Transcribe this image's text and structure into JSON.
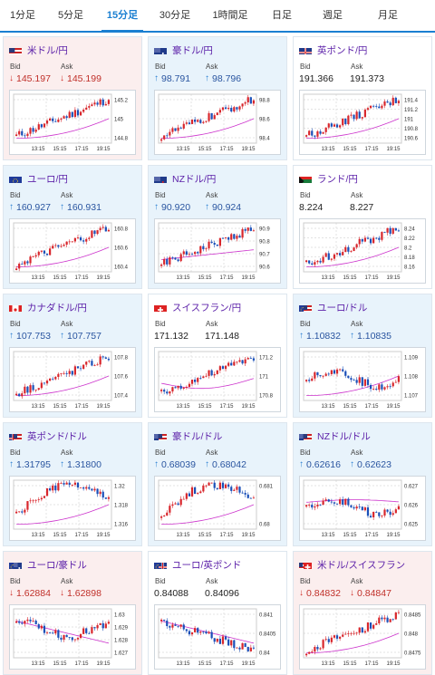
{
  "tabs": [
    {
      "label": "1分足",
      "active": false
    },
    {
      "label": "5分足",
      "active": false
    },
    {
      "label": "15分足",
      "active": true
    },
    {
      "label": "30分足",
      "active": false
    },
    {
      "label": "1時間足",
      "active": false
    },
    {
      "label": "日足",
      "active": false
    },
    {
      "label": "週足",
      "active": false
    },
    {
      "label": "月足",
      "active": false
    }
  ],
  "labels": {
    "bid": "Bid",
    "ask": "Ask"
  },
  "colors": {
    "up_bg": "#e8f3fb",
    "down_bg": "#fbeeee",
    "title": "#5b1fa8",
    "candle_up": "#d8262c",
    "candle_down": "#1a4fb8",
    "ma": "#cc33cc",
    "accent": "#1a7fd1"
  },
  "cards": [
    {
      "name": "米ドル/円",
      "flag": "us-flag",
      "trend": "down",
      "arrow": "↓",
      "bid": "145.197",
      "ask": "145.199",
      "chart_data": {
        "type": "candlestick",
        "x_ticks": [
          "13:15",
          "15:15",
          "17:15",
          "19:15"
        ],
        "y_ticks": [
          "145.2",
          "145",
          "144.8"
        ],
        "ylim": [
          144.7,
          145.3
        ],
        "trend": "up",
        "ma_shape": "rising"
      }
    },
    {
      "name": "豪ドル/円",
      "flag": "au-flag",
      "trend": "up",
      "arrow": "↑",
      "bid": "98.791",
      "ask": "98.796",
      "chart_data": {
        "type": "candlestick",
        "x_ticks": [
          "13:15",
          "15:15",
          "17:15",
          "19:15"
        ],
        "y_ticks": [
          "98.8",
          "98.6",
          "98.4"
        ],
        "ylim": [
          98.3,
          98.9
        ],
        "trend": "up",
        "ma_shape": "rising"
      }
    },
    {
      "name": "英ポンド/円",
      "flag": "uk-flag",
      "trend": "neutral",
      "arrow": "",
      "bid": "191.366",
      "ask": "191.373",
      "chart_data": {
        "type": "candlestick",
        "x_ticks": [
          "13:15",
          "15:15",
          "17:15",
          "19:15"
        ],
        "y_ticks": [
          "191.4",
          "191.2",
          "191",
          "190.8",
          "190.6"
        ],
        "ylim": [
          190.5,
          191.5
        ],
        "trend": "up",
        "ma_shape": "rising"
      }
    },
    {
      "name": "ユーロ/円",
      "flag": "eu-flag",
      "trend": "up",
      "arrow": "↑",
      "bid": "160.927",
      "ask": "160.931",
      "chart_data": {
        "type": "candlestick",
        "x_ticks": [
          "13:15",
          "15:15",
          "17:15",
          "19:15"
        ],
        "y_ticks": [
          "160.8",
          "160.6",
          "160.4"
        ],
        "ylim": [
          160.2,
          161.0
        ],
        "trend": "up",
        "ma_shape": "rising"
      }
    },
    {
      "name": "NZドル/円",
      "flag": "nz-flag",
      "trend": "up",
      "arrow": "↑",
      "bid": "90.920",
      "ask": "90.924",
      "chart_data": {
        "type": "candlestick",
        "x_ticks": [
          "13:15",
          "15:15",
          "17:15",
          "19:15"
        ],
        "y_ticks": [
          "90.9",
          "90.8",
          "90.7",
          "90.6"
        ],
        "ylim": [
          90.55,
          90.95
        ],
        "trend": "up",
        "ma_shape": "flat-rising"
      }
    },
    {
      "name": "ランド/円",
      "flag": "za-flag",
      "trend": "neutral",
      "arrow": "",
      "bid": "8.224",
      "ask": "8.227",
      "chart_data": {
        "type": "candlestick",
        "x_ticks": [
          "13:15",
          "15:15",
          "17:15",
          "19:15"
        ],
        "y_ticks": [
          "8.24",
          "8.22",
          "8.2",
          "8.18",
          "8.16"
        ],
        "ylim": [
          8.15,
          8.25
        ],
        "trend": "up",
        "ma_shape": "rising"
      }
    },
    {
      "name": "カナダドル/円",
      "flag": "ca-flag",
      "trend": "up",
      "arrow": "↑",
      "bid": "107.753",
      "ask": "107.757",
      "chart_data": {
        "type": "candlestick",
        "x_ticks": [
          "13:15",
          "15:15",
          "17:15",
          "19:15"
        ],
        "y_ticks": [
          "107.8",
          "107.6",
          "107.4"
        ],
        "ylim": [
          107.2,
          107.9
        ],
        "trend": "up",
        "ma_shape": "rising"
      }
    },
    {
      "name": "スイスフラン/円",
      "flag": "ch-flag",
      "trend": "neutral",
      "arrow": "",
      "bid": "171.132",
      "ask": "171.148",
      "chart_data": {
        "type": "candlestick",
        "x_ticks": [
          "13:15",
          "15:15",
          "17:15",
          "19:15"
        ],
        "y_ticks": [
          "171.2",
          "171",
          "170.8"
        ],
        "ylim": [
          170.7,
          171.3
        ],
        "trend": "up",
        "ma_shape": "dip-rise"
      }
    },
    {
      "name": "ユーロ/ドル",
      "flag": "eu-us-flag",
      "trend": "up",
      "arrow": "↑",
      "bid": "1.10832",
      "ask": "1.10835",
      "chart_data": {
        "type": "candlestick",
        "x_ticks": [
          "13:15",
          "15:15",
          "17:15",
          "19:15"
        ],
        "y_ticks": [
          "1.109",
          "1.108",
          "1.107"
        ],
        "ylim": [
          1.1065,
          1.1095
        ],
        "trend": "flat",
        "ma_shape": "rising"
      }
    },
    {
      "name": "英ポンド/ドル",
      "flag": "uk-us-flag",
      "trend": "up",
      "arrow": "↑",
      "bid": "1.31795",
      "ask": "1.31800",
      "chart_data": {
        "type": "candlestick",
        "x_ticks": [
          "13:15",
          "15:15",
          "17:15",
          "19:15"
        ],
        "y_ticks": [
          "1.32",
          "1.318",
          "1.316"
        ],
        "ylim": [
          1.3155,
          1.3205
        ],
        "trend": "up-down",
        "ma_shape": "rising"
      }
    },
    {
      "name": "豪ドル/ドル",
      "flag": "au-us-flag",
      "trend": "up",
      "arrow": "↑",
      "bid": "0.68039",
      "ask": "0.68042",
      "chart_data": {
        "type": "candlestick",
        "x_ticks": [
          "13:15",
          "15:15",
          "17:15",
          "19:15"
        ],
        "y_ticks": [
          "0.681",
          "0.68"
        ],
        "ylim": [
          0.6795,
          0.6815
        ],
        "trend": "up-down",
        "ma_shape": "rising"
      }
    },
    {
      "name": "NZドル/ドル",
      "flag": "nz-us-flag",
      "trend": "up",
      "arrow": "↑",
      "bid": "0.62616",
      "ask": "0.62623",
      "chart_data": {
        "type": "candlestick",
        "x_ticks": [
          "13:15",
          "15:15",
          "17:15",
          "19:15"
        ],
        "y_ticks": [
          "0.627",
          "0.626",
          "0.625"
        ],
        "ylim": [
          0.6245,
          0.6275
        ],
        "trend": "flat",
        "ma_shape": "flat"
      }
    },
    {
      "name": "ユーロ/豪ドル",
      "flag": "eu-au-flag",
      "trend": "down",
      "arrow": "↓",
      "bid": "1.62884",
      "ask": "1.62898",
      "chart_data": {
        "type": "candlestick",
        "x_ticks": [
          "13:15",
          "15:15",
          "17:15",
          "19:15"
        ],
        "y_ticks": [
          "1.63",
          "1.629",
          "1.628",
          "1.627"
        ],
        "ylim": [
          1.6265,
          1.6305
        ],
        "trend": "down-up",
        "ma_shape": "falling"
      }
    },
    {
      "name": "ユーロ/英ポンド",
      "flag": "eu-uk-flag",
      "trend": "neutral",
      "arrow": "",
      "bid": "0.84088",
      "ask": "0.84096",
      "chart_data": {
        "type": "candlestick",
        "x_ticks": [
          "13:15",
          "15:15",
          "17:15",
          "19:15"
        ],
        "y_ticks": [
          "0.841",
          "0.8405",
          "0.84"
        ],
        "ylim": [
          0.8398,
          0.8413
        ],
        "trend": "down",
        "ma_shape": "falling"
      }
    },
    {
      "name": "米ドル/スイスフラン",
      "flag": "us-ch-flag",
      "trend": "down",
      "arrow": "↓",
      "bid": "0.84832",
      "ask": "0.84847",
      "chart_data": {
        "type": "candlestick",
        "x_ticks": [
          "13:15",
          "15:15",
          "17:15",
          "19:15"
        ],
        "y_ticks": [
          "0.8485",
          "0.848",
          "0.8475"
        ],
        "ylim": [
          0.8472,
          0.8488
        ],
        "trend": "up",
        "ma_shape": "rising"
      }
    }
  ]
}
